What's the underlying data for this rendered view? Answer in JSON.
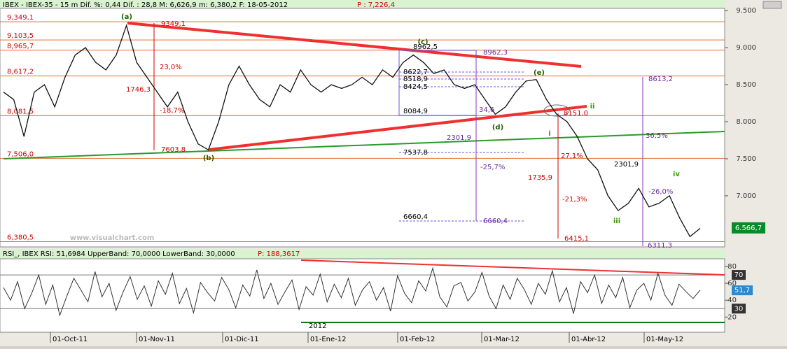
{
  "header": {
    "title": "IBEX - IBEX-35 -  15 m Dif. %: 0,44 Dif. : 28,8 M: 6,626,9 m: 6,380,2 F: 18-05-2012",
    "last": "P : 7,226,4"
  },
  "chart_data": [
    {
      "type": "line",
      "color": "#111111",
      "values": [
        8400,
        8300,
        7800,
        8400,
        8500,
        8200,
        8600,
        8900,
        9000,
        8800,
        8700,
        8900,
        9300,
        8800,
        8600,
        8400,
        8200,
        8400,
        8000,
        7700,
        7620,
        8000,
        8500,
        8750,
        8500,
        8300,
        8200,
        8500,
        8400,
        8700,
        8500,
        8400,
        8500,
        8450,
        8500,
        8600,
        8500,
        8700,
        8600,
        8800,
        8900,
        8800,
        8650,
        8700,
        8500,
        8450,
        8500,
        8300,
        8100,
        8200,
        8400,
        8550,
        8570,
        8300,
        8100,
        8000,
        7800,
        7500,
        7350,
        7000,
        6800,
        6900,
        7100,
        6850,
        6900,
        7000,
        6700,
        6450,
        6560
      ],
      "ylim": [
        6310,
        9530
      ],
      "yticks": [
        {
          "value": 9500,
          "label": "9.500"
        },
        {
          "value": 9000,
          "label": "9.000"
        },
        {
          "value": 8500,
          "label": "8.500"
        },
        {
          "value": 8000,
          "label": "8.000"
        },
        {
          "value": 7500,
          "label": "7.500"
        },
        {
          "value": 7000,
          "label": "7.000"
        }
      ],
      "levels": [
        {
          "value": 9349.1,
          "label": "9,349,1"
        },
        {
          "value": 9103.5,
          "label": "9,103,5"
        },
        {
          "value": 8965.7,
          "label": "8,965,7"
        },
        {
          "value": 8617.2,
          "label": "8,617,2"
        },
        {
          "value": 8081.5,
          "label": "8,081,5"
        },
        {
          "value": 7506.0,
          "label": "7,506,0"
        },
        {
          "value": 6380.5,
          "label": "6,380,5"
        }
      ],
      "last_value": {
        "value": 6566.7,
        "label": "6.566,7"
      },
      "watermark": "www.visualchart.com",
      "annotations": [
        {
          "text": "(a)",
          "color": "#1f5f00"
        },
        {
          "text": "9349,1",
          "color": "#d00000"
        },
        {
          "text": "23,0%",
          "color": "#d00000"
        },
        {
          "text": "1746,3",
          "color": "#d00000"
        },
        {
          "text": "-18,7%",
          "color": "#d00000"
        },
        {
          "text": "7603,8",
          "color": "#d00000"
        },
        {
          "text": "(b)",
          "color": "#1f5f00"
        },
        {
          "text": "(c)",
          "color": "#1f5f00"
        },
        {
          "text": "8962,5",
          "color": "#000000"
        },
        {
          "text": "8962,3",
          "color": "#6a2a9a"
        },
        {
          "text": "8622,7",
          "color": "#000000"
        },
        {
          "text": "8518,9",
          "color": "#000000"
        },
        {
          "text": "8424,5",
          "color": "#000000"
        },
        {
          "text": "8084,9",
          "color": "#000000"
        },
        {
          "text": "34,6",
          "color": "#6a2a9a"
        },
        {
          "text": "(d)",
          "color": "#1f5f00"
        },
        {
          "text": "(e)",
          "color": "#1f5f00"
        },
        {
          "text": "8151,0",
          "color": "#d00000"
        },
        {
          "text": "ii",
          "color": "#3a9a00"
        },
        {
          "text": "i",
          "color": "#3a9a00"
        },
        {
          "text": "2301,9",
          "color": "#6a2a9a"
        },
        {
          "text": "-25,7%",
          "color": "#6a2a9a"
        },
        {
          "text": "7537,8",
          "color": "#000000"
        },
        {
          "text": "27,1%",
          "color": "#d00000"
        },
        {
          "text": "1735,9",
          "color": "#d00000"
        },
        {
          "text": "-21,3%",
          "color": "#d00000"
        },
        {
          "text": "6660,4",
          "color": "#000000"
        },
        {
          "text": "6660,4",
          "color": "#6a2a9a"
        },
        {
          "text": "6415,1",
          "color": "#d00000"
        },
        {
          "text": "8613,2",
          "color": "#6a2a9a"
        },
        {
          "text": "36,5%",
          "color": "#6a2a9a"
        },
        {
          "text": "2301,9",
          "color": "#000000"
        },
        {
          "text": "-26,0%",
          "color": "#6a2a9a"
        },
        {
          "text": "iii",
          "color": "#3a9a00"
        },
        {
          "text": "iv",
          "color": "#3a9a00"
        },
        {
          "text": "6311,3",
          "color": "#6a2a9a"
        }
      ]
    },
    {
      "type": "line",
      "title": "RSI_, IBEX RSI: 51,6984 UpperBand: 70,0000 LowerBand: 30,0000",
      "title_p": "P: 188,3617",
      "color": "#333333",
      "values": [
        55,
        40,
        62,
        30,
        48,
        70,
        35,
        58,
        22,
        45,
        66,
        52,
        38,
        74,
        44,
        60,
        28,
        50,
        68,
        41,
        57,
        33,
        63,
        47,
        72,
        36,
        54,
        25,
        61,
        49,
        39,
        67,
        53,
        31,
        58,
        45,
        76,
        42,
        60,
        35,
        50,
        64,
        29,
        56,
        46,
        71,
        38,
        59,
        43,
        66,
        34,
        52,
        62,
        40,
        55,
        27,
        69,
        48,
        37,
        63,
        51,
        78,
        44,
        32,
        57,
        61,
        39,
        50,
        73,
        45,
        30,
        58,
        41,
        66,
        53,
        35,
        60,
        47,
        75,
        38,
        55,
        24,
        62,
        49,
        70,
        36,
        58,
        43,
        67,
        31,
        52,
        60,
        40,
        72,
        46,
        34,
        59,
        50,
        42,
        52
      ],
      "ylim": [
        2,
        87.5
      ],
      "yticks": [
        20,
        40,
        60,
        80
      ],
      "bands": [
        70,
        30
      ],
      "last_value": {
        "value": 51.7,
        "label": "51,7"
      }
    }
  ],
  "x_axis": {
    "labels": [
      "01-Oct-11",
      "01-Nov-11",
      "01-Dic-11",
      "01-Ene-12",
      "01-Feb-12",
      "01-Mar-12",
      "01-Abr-12",
      "01-May-12"
    ],
    "year_label": "2012"
  }
}
